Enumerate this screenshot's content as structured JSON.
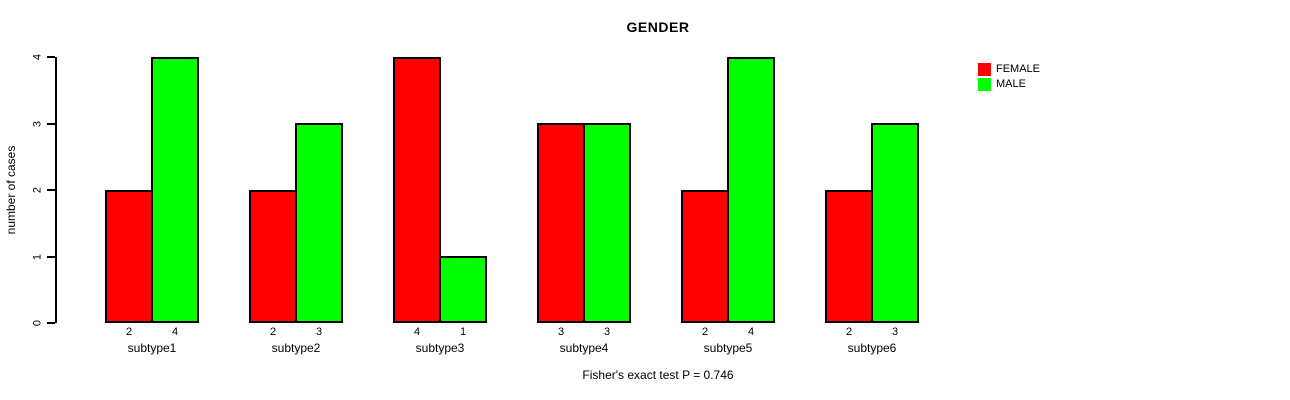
{
  "chart_data": {
    "type": "bar",
    "title": "GENDER",
    "xlabel": "",
    "ylabel": "number of cases",
    "categories": [
      "subtype1",
      "subtype2",
      "subtype3",
      "subtype4",
      "subtype5",
      "subtype6"
    ],
    "series": [
      {
        "name": "FEMALE",
        "color": "#ff0000",
        "values": [
          2,
          2,
          4,
          3,
          2,
          2
        ]
      },
      {
        "name": "MALE",
        "color": "#00ff00",
        "values": [
          4,
          3,
          1,
          3,
          4,
          3
        ]
      }
    ],
    "bar_value_labels_shown": true,
    "ylim": [
      0,
      4
    ],
    "yticks": [
      0,
      1,
      2,
      3,
      4
    ],
    "grid": false,
    "legend_position": "top-right",
    "annotation": "Fisher's exact test P = 0.746",
    "bar_border_color": "#000000",
    "background_color": "#ffffff"
  }
}
